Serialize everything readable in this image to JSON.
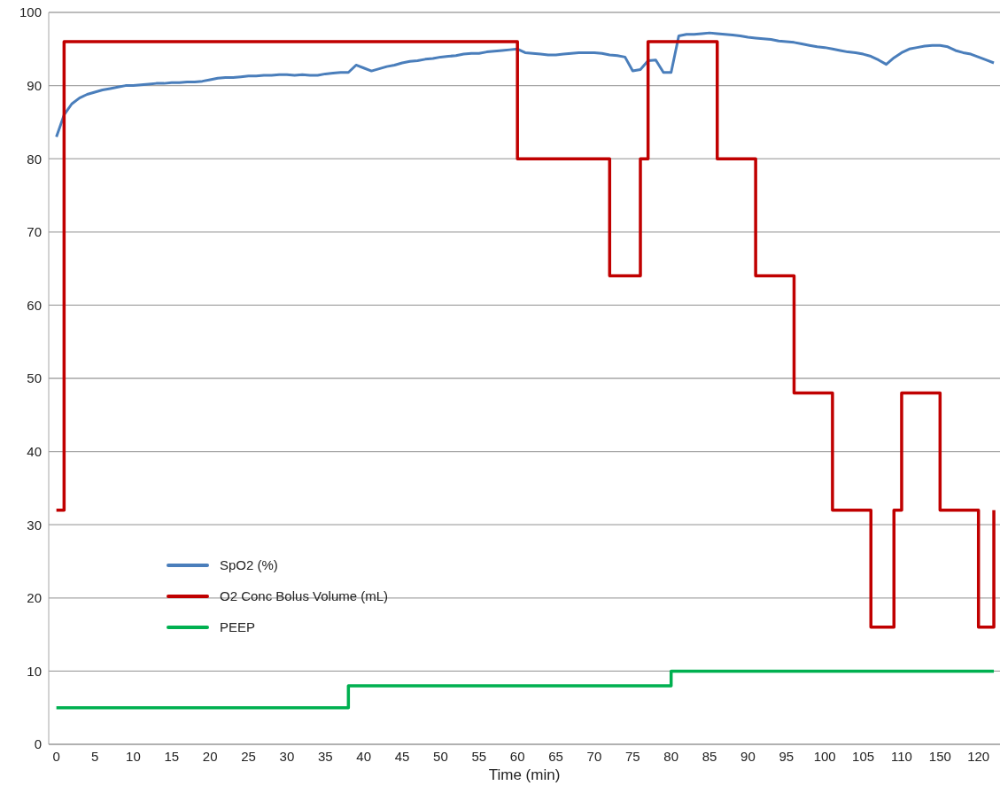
{
  "chart_data": {
    "type": "line",
    "xlabel": "Time (min)",
    "categories": [
      "0",
      null,
      null,
      null,
      null,
      "5",
      null,
      null,
      null,
      null,
      "10",
      null,
      null,
      null,
      null,
      "15",
      null,
      null,
      null,
      null,
      "20",
      null,
      null,
      null,
      null,
      "25",
      null,
      null,
      null,
      null,
      "30",
      null,
      null,
      null,
      null,
      "35",
      null,
      null,
      null,
      null,
      "40",
      null,
      null,
      null,
      null,
      "45",
      null,
      null,
      null,
      null,
      "50",
      null,
      null,
      null,
      null,
      "55",
      null,
      null,
      null,
      null,
      "60",
      null,
      null,
      null,
      null,
      "65",
      null,
      null,
      null,
      null,
      "70",
      null,
      null,
      null,
      null,
      "75",
      null,
      null,
      null,
      null,
      "80",
      null,
      null,
      null,
      null,
      "85",
      null,
      null,
      null,
      null,
      "90",
      null,
      null,
      null,
      null,
      "95",
      null,
      null,
      null,
      null,
      "100",
      null,
      null,
      null,
      null,
      "105",
      null,
      null,
      null,
      null,
      "110",
      null,
      null,
      null,
      null,
      "150",
      null,
      null,
      null,
      null,
      "120",
      null,
      null
    ],
    "series": [
      {
        "name": "SpO2 (%)",
        "color": "#4a7ebb",
        "values": [
          83,
          86,
          87.5,
          88.3,
          88.8,
          89.1,
          89.4,
          89.6,
          89.8,
          90,
          90,
          90.1,
          90.2,
          90.3,
          90.3,
          90.4,
          90.4,
          90.5,
          90.5,
          90.6,
          90.8,
          91,
          91.1,
          91.1,
          91.2,
          91.3,
          91.3,
          91.4,
          91.4,
          91.5,
          91.5,
          91.4,
          91.5,
          91.4,
          91.4,
          91.6,
          91.7,
          91.8,
          91.8,
          92.8,
          92.4,
          92,
          92.3,
          92.6,
          92.8,
          93.1,
          93.3,
          93.4,
          93.6,
          93.7,
          93.9,
          94,
          94.1,
          94.3,
          94.4,
          94.4,
          94.6,
          94.7,
          94.8,
          94.9,
          95,
          94.5,
          94.4,
          94.3,
          94.2,
          94.2,
          94.3,
          94.4,
          94.5,
          94.5,
          94.5,
          94.4,
          94.2,
          94.1,
          93.9,
          92,
          92.2,
          93.4,
          93.5,
          91.8,
          91.8,
          96.8,
          97,
          97,
          97.1,
          97.2,
          97.1,
          97,
          96.9,
          96.8,
          96.6,
          96.5,
          96.4,
          96.3,
          96.1,
          96,
          95.9,
          95.7,
          95.5,
          95.3,
          95.2,
          95,
          94.8,
          94.6,
          94.5,
          94.3,
          94,
          93.5,
          92.9,
          93.8,
          94.5,
          95,
          95.2,
          95.4,
          95.5,
          95.5,
          95.3,
          94.8,
          94.5,
          94.3,
          93.9,
          93.5,
          93.1
        ]
      },
      {
        "name": "O2 Conc Bolus Volume (mL)",
        "type": "step",
        "color": "#c00000",
        "values": [
          32,
          96,
          96,
          96,
          96,
          96,
          96,
          96,
          96,
          96,
          96,
          96,
          96,
          96,
          96,
          96,
          96,
          96,
          96,
          96,
          96,
          96,
          96,
          96,
          96,
          96,
          96,
          96,
          96,
          96,
          96,
          96,
          96,
          96,
          96,
          96,
          96,
          96,
          96,
          96,
          96,
          96,
          96,
          96,
          96,
          96,
          96,
          96,
          96,
          96,
          96,
          96,
          96,
          96,
          96,
          96,
          96,
          96,
          96,
          96,
          80,
          80,
          80,
          80,
          80,
          80,
          80,
          80,
          80,
          80,
          80,
          80,
          64,
          64,
          64,
          64,
          80,
          96,
          96,
          96,
          96,
          96,
          96,
          96,
          96,
          96,
          80,
          80,
          80,
          80,
          80,
          64,
          64,
          64,
          64,
          64,
          48,
          48,
          48,
          48,
          48,
          32,
          32,
          32,
          32,
          32,
          16,
          16,
          16,
          32,
          48,
          48,
          48,
          48,
          48,
          32,
          32,
          32,
          32,
          32,
          16,
          16,
          32
        ]
      },
      {
        "name": "PEEP",
        "type": "step",
        "color": "#00b050",
        "values": [
          5,
          5,
          5,
          5,
          5,
          5,
          5,
          5,
          5,
          5,
          5,
          5,
          5,
          5,
          5,
          5,
          5,
          5,
          5,
          5,
          5,
          5,
          5,
          5,
          5,
          5,
          5,
          5,
          5,
          5,
          5,
          5,
          5,
          5,
          5,
          5,
          5,
          5,
          8,
          8,
          8,
          8,
          8,
          8,
          8,
          8,
          8,
          8,
          8,
          8,
          8,
          8,
          8,
          8,
          8,
          8,
          8,
          8,
          8,
          8,
          8,
          8,
          8,
          8,
          8,
          8,
          8,
          8,
          8,
          8,
          8,
          8,
          8,
          8,
          8,
          8,
          8,
          8,
          8,
          8,
          10,
          10,
          10,
          10,
          10,
          10,
          10,
          10,
          10,
          10,
          10,
          10,
          10,
          10,
          10,
          10,
          10,
          10,
          10,
          10,
          10,
          10,
          10,
          10,
          10,
          10,
          10,
          10,
          10,
          10,
          10,
          10,
          10,
          10,
          10,
          10,
          10,
          10,
          10,
          10,
          10,
          10,
          10
        ]
      }
    ],
    "ylim": [
      0,
      100
    ],
    "yticks": [
      0,
      10,
      20,
      30,
      40,
      50,
      60,
      70,
      80,
      90,
      100
    ],
    "grid": "y",
    "legend": "bottom left",
    "marker": "none",
    "line_style": "solid"
  }
}
